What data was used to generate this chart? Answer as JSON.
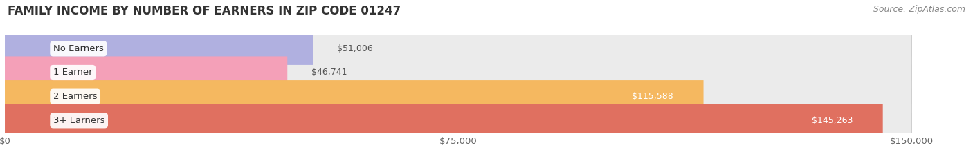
{
  "title": "FAMILY INCOME BY NUMBER OF EARNERS IN ZIP CODE 01247",
  "source": "Source: ZipAtlas.com",
  "categories": [
    "No Earners",
    "1 Earner",
    "2 Earners",
    "3+ Earners"
  ],
  "values": [
    51006,
    46741,
    115588,
    145263
  ],
  "bar_colors": [
    "#b0b0e0",
    "#f4a0b8",
    "#f5b860",
    "#e07060"
  ],
  "bar_bg_color": "#ebebeb",
  "x_max": 150000,
  "x_ticks": [
    0,
    75000,
    150000
  ],
  "x_tick_labels": [
    "$0",
    "$75,000",
    "$150,000"
  ],
  "value_labels": [
    "$51,006",
    "$46,741",
    "$115,588",
    "$145,263"
  ],
  "label_inside_threshold": 75000,
  "background_color": "#ffffff",
  "title_fontsize": 12,
  "source_fontsize": 9,
  "label_fontsize": 9.5,
  "tick_fontsize": 9.5,
  "value_label_fontsize": 9
}
